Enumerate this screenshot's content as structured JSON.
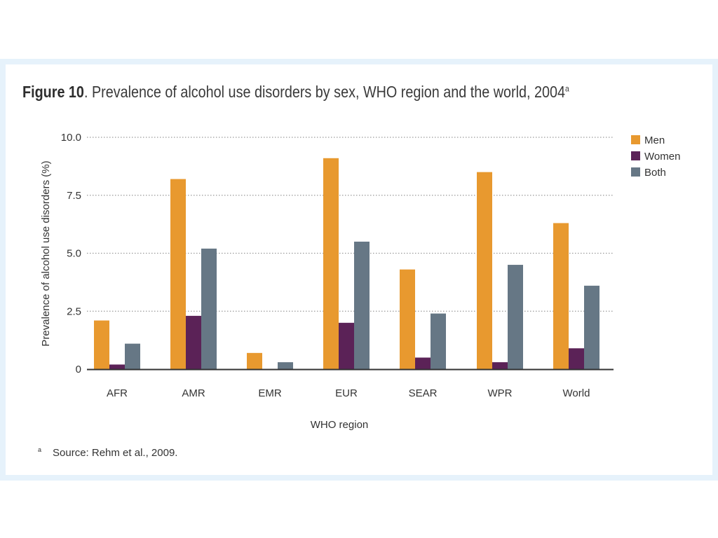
{
  "figure": {
    "label": "Figure 10",
    "title_rest": ". Prevalence of alcohol use disorders by sex, WHO region and the world, 2004",
    "title_sup": "a"
  },
  "footnote": {
    "marker": "a",
    "text": "Source: Rehm et al., 2009."
  },
  "colors": {
    "men": "#e8992f",
    "women": "#5b2257",
    "both": "#667785",
    "grid": "#9a9a9a",
    "axis": "#333333",
    "frame": "#e6f2fb"
  },
  "chart_data": {
    "type": "bar",
    "title": "Prevalence of alcohol use disorders by sex, WHO region and the world, 2004",
    "xlabel": "WHO region",
    "ylabel": "Prevalence of alcohol use disorders (%)",
    "ylim": [
      0,
      10
    ],
    "yticks": [
      0,
      2.5,
      5.0,
      7.5,
      10.0
    ],
    "ytick_labels": [
      "0",
      "2.5",
      "5.0",
      "7.5",
      "10.0"
    ],
    "grid": true,
    "legend_position": "top-right",
    "categories": [
      "AFR",
      "AMR",
      "EMR",
      "EUR",
      "SEAR",
      "WPR",
      "World"
    ],
    "series": [
      {
        "name": "Men",
        "color": "#e8992f",
        "values": [
          2.1,
          8.2,
          0.7,
          9.1,
          4.3,
          8.5,
          6.3
        ]
      },
      {
        "name": "Women",
        "color": "#5b2257",
        "values": [
          0.2,
          2.3,
          0.0,
          2.0,
          0.5,
          0.3,
          0.9
        ]
      },
      {
        "name": "Both",
        "color": "#667785",
        "values": [
          1.1,
          5.2,
          0.3,
          5.5,
          2.4,
          4.5,
          3.6
        ]
      }
    ]
  }
}
